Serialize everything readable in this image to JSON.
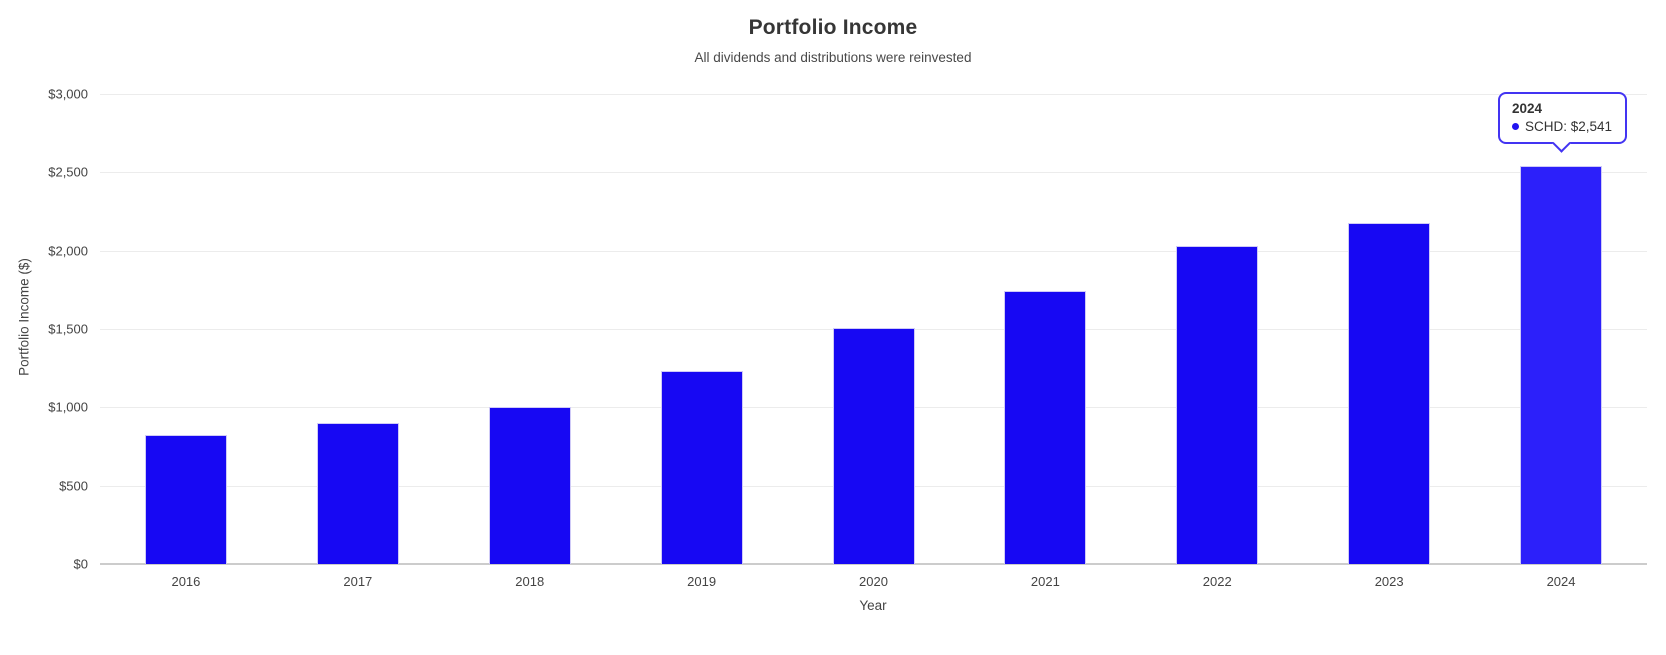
{
  "chart_data": {
    "type": "bar",
    "title": "Portfolio Income",
    "subtitle": "All dividends and distributions were reinvested",
    "xlabel": "Year",
    "ylabel": "Portfolio Income ($)",
    "categories": [
      "2016",
      "2017",
      "2018",
      "2019",
      "2020",
      "2021",
      "2022",
      "2023",
      "2024"
    ],
    "series": [
      {
        "name": "SCHD",
        "values": [
          825,
          900,
          1000,
          1235,
          1505,
          1740,
          2030,
          2175,
          2541
        ]
      }
    ],
    "ylim": [
      0,
      3000
    ],
    "ytick_step": 500,
    "ytick_labels": [
      "$0",
      "$500",
      "$1,000",
      "$1,500",
      "$2,000",
      "$2,500",
      "$3,000"
    ],
    "grid": true,
    "legend_position": "none",
    "bar_color": "#1708f3",
    "hover_bar_color": "#2c20fa",
    "hovered_index": 8
  },
  "tooltip": {
    "title": "2024",
    "value_label": "SCHD: $2,541",
    "dot_color": "#2213f0",
    "border_color": "#4334f2"
  }
}
